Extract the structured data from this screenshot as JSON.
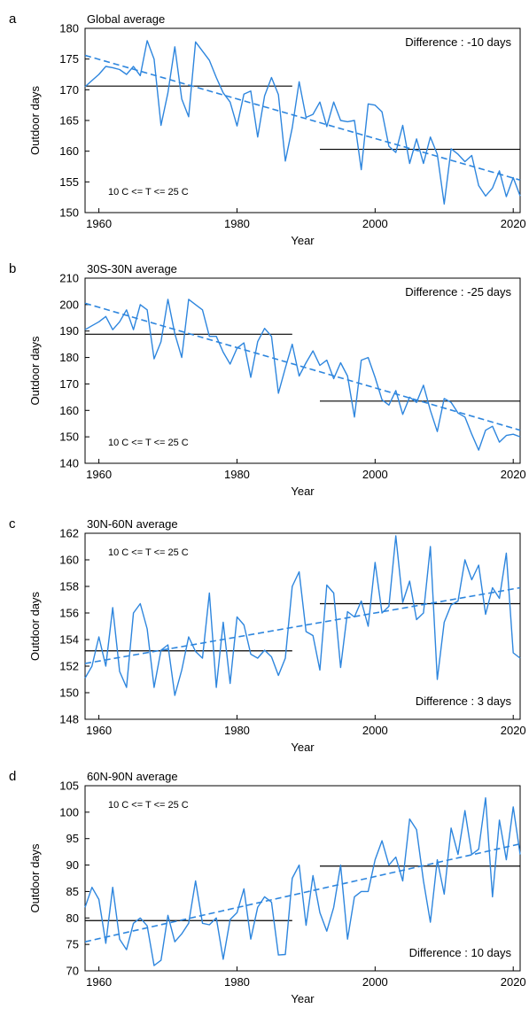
{
  "colors": {
    "series": "#2e86de",
    "mean": "#000000",
    "axes": "#000000"
  },
  "chart_data": [
    {
      "type": "line",
      "panel": "a",
      "title": "Global average",
      "xlabel": "Year",
      "ylabel": "Outdoor days",
      "xlim": [
        1958,
        2021
      ],
      "ylim": [
        150,
        180
      ],
      "xticks": [
        1960,
        1980,
        2000,
        2020
      ],
      "yticks": [
        150,
        155,
        160,
        165,
        170,
        175,
        180
      ],
      "difference": "Difference : -10 days",
      "condition": "10 C <= T <= 25 C",
      "annotation_placement": "top-right",
      "condition_placement": "bottom-left",
      "x": [
        1958,
        1959,
        1960,
        1961,
        1962,
        1963,
        1964,
        1965,
        1966,
        1967,
        1968,
        1969,
        1970,
        1971,
        1972,
        1973,
        1974,
        1975,
        1976,
        1977,
        1978,
        1979,
        1980,
        1981,
        1982,
        1983,
        1984,
        1985,
        1986,
        1987,
        1988,
        1989,
        1990,
        1991,
        1992,
        1993,
        1994,
        1995,
        1996,
        1997,
        1998,
        1999,
        2000,
        2001,
        2002,
        2003,
        2004,
        2005,
        2006,
        2007,
        2008,
        2009,
        2010,
        2011,
        2012,
        2013,
        2014,
        2015,
        2016,
        2017,
        2018,
        2019,
        2020,
        2021
      ],
      "y": [
        170.5,
        171.5,
        172.5,
        173.8,
        173.6,
        173.3,
        172.5,
        173.8,
        172.3,
        178.0,
        175.0,
        164.2,
        169.5,
        177.0,
        168.5,
        165.6,
        177.8,
        176.3,
        174.8,
        172.0,
        169.5,
        168.0,
        164.1,
        169.3,
        169.8,
        162.3,
        169.0,
        172.0,
        169.2,
        158.4,
        163.8,
        171.3,
        165.5,
        166.0,
        168.0,
        164.0,
        168.0,
        165.0,
        164.8,
        165.0,
        157.0,
        167.7,
        167.5,
        166.4,
        160.8,
        159.8,
        164.2,
        158.0,
        162.0,
        158.0,
        162.3,
        159.5,
        151.4,
        160.4,
        159.5,
        158.3,
        159.3,
        154.4,
        152.7,
        154.0,
        156.8,
        152.6,
        155.7,
        152.7
      ],
      "trend": [
        [
          1958,
          175.6
        ],
        [
          2021,
          155.3
        ]
      ],
      "period_means": [
        {
          "x0": 1958,
          "x1": 1988,
          "y": 170.6
        },
        {
          "x0": 1992,
          "x1": 2021,
          "y": 160.3
        }
      ]
    },
    {
      "type": "line",
      "panel": "b",
      "title": "30S-30N average",
      "xlabel": "Year",
      "ylabel": "Outdoor days",
      "xlim": [
        1958,
        2021
      ],
      "ylim": [
        140,
        210
      ],
      "xticks": [
        1960,
        1980,
        2000,
        2020
      ],
      "yticks": [
        140,
        150,
        160,
        170,
        180,
        190,
        200,
        210
      ],
      "difference": "Difference : -25 days",
      "condition": "10 C <= T <= 25 C",
      "annotation_placement": "top-right",
      "condition_placement": "bottom-left",
      "x": [
        1958,
        1959,
        1960,
        1961,
        1962,
        1963,
        1964,
        1965,
        1966,
        1967,
        1968,
        1969,
        1970,
        1971,
        1972,
        1973,
        1974,
        1975,
        1976,
        1977,
        1978,
        1979,
        1980,
        1981,
        1982,
        1983,
        1984,
        1985,
        1986,
        1987,
        1988,
        1989,
        1990,
        1991,
        1992,
        1993,
        1994,
        1995,
        1996,
        1997,
        1998,
        1999,
        2000,
        2001,
        2002,
        2003,
        2004,
        2005,
        2006,
        2007,
        2008,
        2009,
        2010,
        2011,
        2012,
        2013,
        2014,
        2015,
        2016,
        2017,
        2018,
        2019,
        2020,
        2021
      ],
      "y": [
        190.5,
        192.0,
        193.5,
        195.5,
        190.5,
        193.5,
        198.0,
        190.5,
        200.0,
        198.0,
        179.5,
        186.0,
        202.0,
        189.0,
        180.0,
        202.0,
        200.0,
        198.0,
        188.0,
        188.0,
        182.0,
        177.5,
        183.5,
        185.5,
        172.5,
        186.0,
        191.0,
        188.0,
        166.5,
        176.0,
        185.0,
        173.0,
        178.0,
        182.5,
        177.0,
        179.0,
        172.0,
        178.0,
        173.0,
        157.5,
        179.0,
        180.0,
        172.5,
        164.0,
        162.0,
        167.5,
        158.5,
        165.0,
        163.0,
        169.5,
        160.0,
        152.0,
        164.5,
        163.0,
        159.0,
        157.5,
        151.0,
        145.0,
        152.5,
        154.0,
        148.0,
        150.5,
        151.0,
        150.0
      ],
      "trend": [
        [
          1958,
          200.5
        ],
        [
          2021,
          152.5
        ]
      ],
      "period_means": [
        {
          "x0": 1958,
          "x1": 1988,
          "y": 188.8
        },
        {
          "x0": 1992,
          "x1": 2021,
          "y": 163.5
        }
      ]
    },
    {
      "type": "line",
      "panel": "c",
      "title": "30N-60N average",
      "xlabel": "Year",
      "ylabel": "Outdoor days",
      "xlim": [
        1958,
        2021
      ],
      "ylim": [
        148,
        162
      ],
      "xticks": [
        1960,
        1980,
        2000,
        2020
      ],
      "yticks": [
        148,
        150,
        152,
        154,
        156,
        158,
        160,
        162
      ],
      "difference": "Difference : 3 days",
      "condition": "10 C <= T <= 25 C",
      "annotation_placement": "bottom-right",
      "condition_placement": "top-left",
      "x": [
        1958,
        1959,
        1960,
        1961,
        1962,
        1963,
        1964,
        1965,
        1966,
        1967,
        1968,
        1969,
        1970,
        1971,
        1972,
        1973,
        1974,
        1975,
        1976,
        1977,
        1978,
        1979,
        1980,
        1981,
        1982,
        1983,
        1984,
        1985,
        1986,
        1987,
        1988,
        1989,
        1990,
        1991,
        1992,
        1993,
        1994,
        1995,
        1996,
        1997,
        1998,
        1999,
        2000,
        2001,
        2002,
        2003,
        2004,
        2005,
        2006,
        2007,
        2008,
        2009,
        2010,
        2011,
        2012,
        2013,
        2014,
        2015,
        2016,
        2017,
        2018,
        2019,
        2020,
        2021
      ],
      "y": [
        151.1,
        152.0,
        154.2,
        152.0,
        156.4,
        151.6,
        150.4,
        156.0,
        156.7,
        154.8,
        150.4,
        153.2,
        153.6,
        149.8,
        151.7,
        154.2,
        153.1,
        152.6,
        157.5,
        150.4,
        155.3,
        150.7,
        155.7,
        155.1,
        152.9,
        152.6,
        153.2,
        152.7,
        151.3,
        152.6,
        158.0,
        159.1,
        154.6,
        154.3,
        151.7,
        158.1,
        157.5,
        151.9,
        156.1,
        155.7,
        156.9,
        155.0,
        159.8,
        156.0,
        156.5,
        161.8,
        156.8,
        158.4,
        155.5,
        156.0,
        161.0,
        151.0,
        155.3,
        156.6,
        156.9,
        160.0,
        158.5,
        159.6,
        155.9,
        157.9,
        157.1,
        160.5,
        153.0,
        152.6
      ],
      "trend": [
        [
          1958,
          152.2
        ],
        [
          2021,
          157.9
        ]
      ],
      "period_means": [
        {
          "x0": 1958,
          "x1": 1988,
          "y": 153.15
        },
        {
          "x0": 1992,
          "x1": 2021,
          "y": 156.7
        }
      ]
    },
    {
      "type": "line",
      "panel": "d",
      "title": "60N-90N average",
      "xlabel": "Year",
      "ylabel": "Outdoor days",
      "xlim": [
        1958,
        2021
      ],
      "ylim": [
        70,
        105
      ],
      "xticks": [
        1960,
        1980,
        2000,
        2020
      ],
      "yticks": [
        70,
        75,
        80,
        85,
        90,
        95,
        100,
        105
      ],
      "difference": "Difference : 10 days",
      "condition": "10 C <= T <= 25 C",
      "annotation_placement": "bottom-right",
      "condition_placement": "top-left",
      "x": [
        1958,
        1959,
        1960,
        1961,
        1962,
        1963,
        1964,
        1965,
        1966,
        1967,
        1968,
        1969,
        1970,
        1971,
        1972,
        1973,
        1974,
        1975,
        1976,
        1977,
        1978,
        1979,
        1980,
        1981,
        1982,
        1983,
        1984,
        1985,
        1986,
        1987,
        1988,
        1989,
        1990,
        1991,
        1992,
        1993,
        1994,
        1995,
        1996,
        1997,
        1998,
        1999,
        2000,
        2001,
        2002,
        2003,
        2004,
        2005,
        2006,
        2007,
        2008,
        2009,
        2010,
        2011,
        2012,
        2013,
        2014,
        2015,
        2016,
        2017,
        2018,
        2019,
        2020,
        2021
      ],
      "y": [
        82.0,
        85.8,
        83.5,
        75.2,
        85.8,
        76.0,
        74.0,
        79.0,
        80.0,
        78.5,
        71.0,
        72.0,
        80.5,
        75.5,
        77.0,
        79.0,
        87.0,
        79.0,
        78.7,
        80.0,
        72.2,
        79.7,
        81.0,
        85.5,
        76.0,
        82.0,
        84.0,
        83.0,
        73.0,
        73.1,
        87.5,
        90.0,
        78.6,
        88.0,
        81.0,
        77.5,
        82.0,
        90.0,
        76.0,
        84.0,
        85.0,
        85.0,
        91.0,
        94.6,
        90.0,
        91.5,
        87.0,
        98.7,
        96.7,
        87.0,
        79.2,
        91.0,
        84.5,
        97.0,
        92.0,
        100.3,
        92.0,
        93.0,
        102.7,
        84.0,
        98.5,
        91.0,
        101.0,
        92.0
      ],
      "trend": [
        [
          1958,
          75.5
        ],
        [
          2021,
          94.0
        ]
      ],
      "period_means": [
        {
          "x0": 1958,
          "x1": 1988,
          "y": 79.5
        },
        {
          "x0": 1992,
          "x1": 2021,
          "y": 89.8
        }
      ]
    }
  ]
}
